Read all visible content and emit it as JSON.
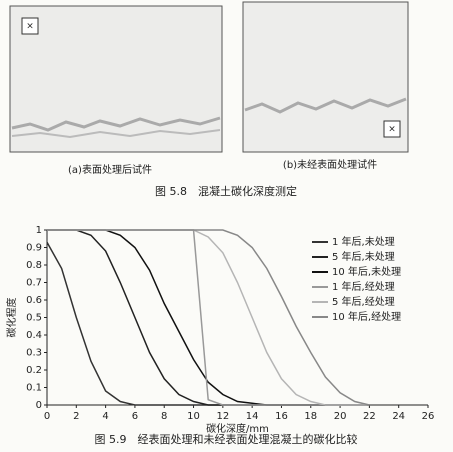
{
  "figure_5_8": {
    "panels": [
      {
        "caption": "(a)表面处理后试件"
      },
      {
        "caption": "(b)未经表面处理试件"
      }
    ],
    "caption": "图 5.8　混凝土碳化深度测定"
  },
  "chart_data": {
    "type": "line",
    "xlabel": "碳化深度/mm",
    "ylabel": "碳化程度",
    "x": [
      0,
      1,
      2,
      3,
      4,
      5,
      6,
      7,
      8,
      9,
      10,
      11,
      12,
      13,
      14,
      15,
      16,
      17,
      18,
      19,
      20,
      21,
      22
    ],
    "xlim": [
      0,
      26
    ],
    "xticks": [
      0,
      2,
      4,
      6,
      8,
      10,
      12,
      14,
      16,
      18,
      20,
      22,
      24,
      26
    ],
    "ylim": [
      0,
      1
    ],
    "yticks": [
      0,
      0.1,
      0.2,
      0.3,
      0.4,
      0.5,
      0.6,
      0.7,
      0.8,
      0.9,
      1
    ],
    "series": [
      {
        "name": "1 年后,未处理",
        "color": "#333333",
        "values": [
          0.93,
          0.78,
          0.5,
          0.25,
          0.08,
          0.02,
          0,
          0,
          0,
          0,
          0,
          0,
          0,
          0,
          0,
          0,
          0,
          0,
          0,
          0,
          0,
          0,
          0
        ]
      },
      {
        "name": "5 年后,未处理",
        "color": "#222222",
        "values": [
          1,
          1,
          1,
          0.97,
          0.88,
          0.7,
          0.5,
          0.3,
          0.15,
          0.06,
          0.02,
          0,
          0,
          0,
          0,
          0,
          0,
          0,
          0,
          0,
          0,
          0,
          0
        ]
      },
      {
        "name": "10 年后,未处理",
        "color": "#111111",
        "values": [
          1,
          1,
          1,
          1,
          1,
          0.97,
          0.9,
          0.77,
          0.58,
          0.42,
          0.26,
          0.13,
          0.06,
          0.02,
          0.01,
          0,
          0,
          0,
          0,
          0,
          0,
          0,
          0
        ]
      },
      {
        "name": "1 年后,经处理",
        "color": "#999999",
        "values": [
          1,
          1,
          1,
          1,
          1,
          1,
          1,
          1,
          1,
          1,
          1,
          0.03,
          0,
          0,
          0,
          0,
          0,
          0,
          0,
          0,
          0,
          0,
          0
        ]
      },
      {
        "name": "5 年后,经处理",
        "color": "#b5b5b5",
        "values": [
          1,
          1,
          1,
          1,
          1,
          1,
          1,
          1,
          1,
          1,
          1,
          0.96,
          0.87,
          0.7,
          0.5,
          0.3,
          0.15,
          0.06,
          0.02,
          0,
          0,
          0,
          0
        ]
      },
      {
        "name": "10 年后,经处理",
        "color": "#888888",
        "values": [
          1,
          1,
          1,
          1,
          1,
          1,
          1,
          1,
          1,
          1,
          1,
          1,
          1,
          0.97,
          0.9,
          0.78,
          0.62,
          0.45,
          0.3,
          0.16,
          0.07,
          0.02,
          0
        ]
      }
    ]
  },
  "figure_5_9": {
    "caption": "图 5.9　经表面处理和未经表面处理混凝土的碳化比较"
  }
}
